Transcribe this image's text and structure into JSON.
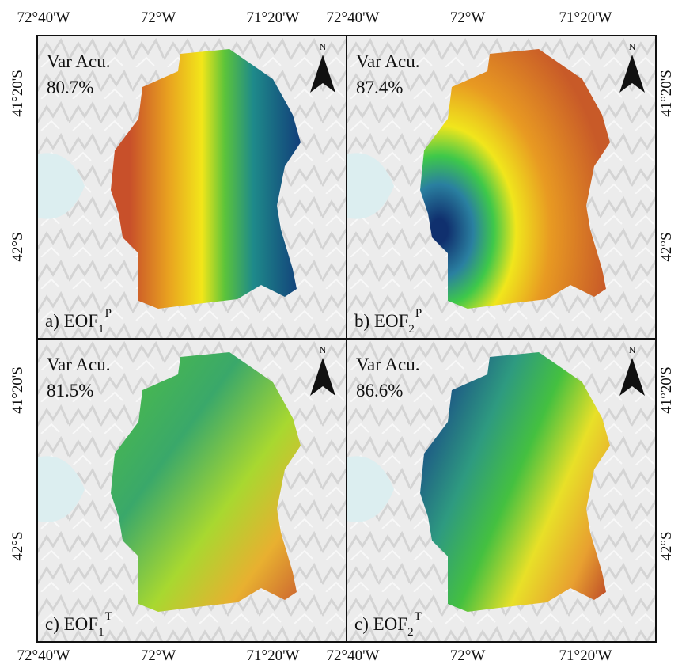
{
  "panels": [
    {
      "title": "Var Acu.",
      "value": "80.7%",
      "label": {
        "prefix": "a) EOF",
        "subscript": "1",
        "superscript": "P"
      },
      "north": "N"
    },
    {
      "title": "Var Acu.",
      "value": "87.4%",
      "label": {
        "prefix": "b) EOF",
        "subscript": "2",
        "superscript": "P"
      },
      "north": "N"
    },
    {
      "title": "Var Acu.",
      "value": "81.5%",
      "label": {
        "prefix": "c) EOF",
        "subscript": "1",
        "superscript": "T"
      },
      "north": "N"
    },
    {
      "title": "Var Acu.",
      "value": "86.6%",
      "label": {
        "prefix": "c) EOF",
        "subscript": "2",
        "superscript": "T"
      },
      "north": "N"
    }
  ],
  "axes": {
    "top": [
      "72°40'W",
      "72°W",
      "71°20'W",
      "72°40'W",
      "72°W",
      "71°20'W"
    ],
    "bottom": [
      "72°40'W",
      "72°W",
      "71°20'W",
      "72°40'W",
      "72°W",
      "71°20'W"
    ],
    "left": [
      "41°20'S",
      "42°S",
      "41°20'S",
      "42°S"
    ],
    "right": [
      "41°20'S",
      "42°S",
      "41°20'S",
      "42°S"
    ]
  }
}
